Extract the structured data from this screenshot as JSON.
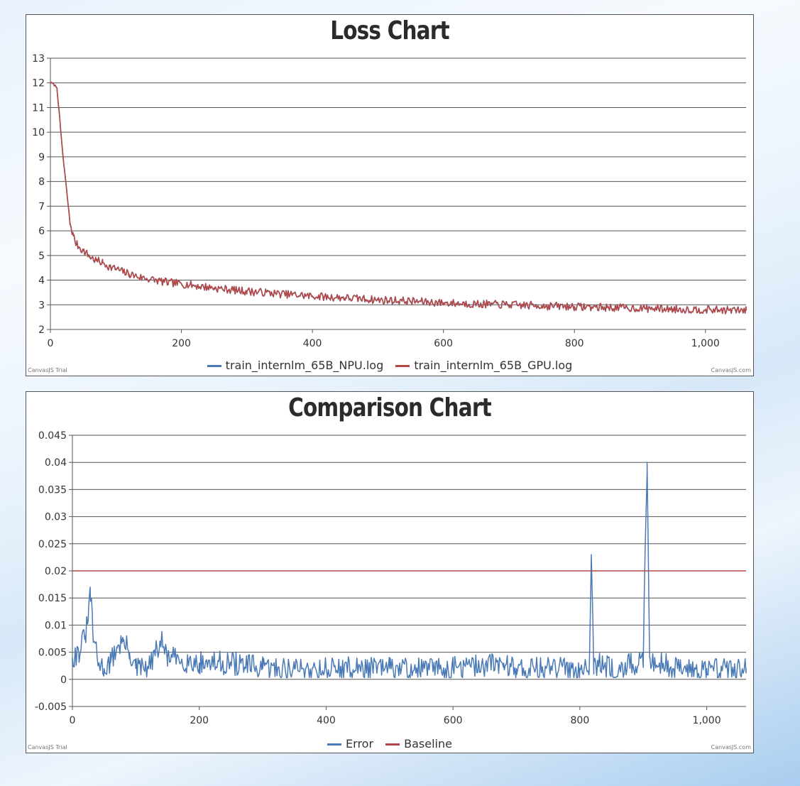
{
  "colors": {
    "series_blue": "#4a7ab6",
    "series_red": "#b44646",
    "grid": "#555555"
  },
  "watermark_left": "CanvasJS Trial",
  "watermark_right": "CanvasJS.com",
  "chart_data": [
    {
      "type": "line",
      "title": "Loss Chart",
      "xlabel": "",
      "ylabel": "",
      "xlim": [
        0,
        1062
      ],
      "ylim": [
        2,
        13
      ],
      "x_ticks": [
        0,
        200,
        400,
        600,
        800,
        1000
      ],
      "x_tick_labels": [
        "0",
        "200",
        "400",
        "600",
        "800",
        "1,000"
      ],
      "y_ticks": [
        2,
        3,
        4,
        5,
        6,
        7,
        8,
        9,
        10,
        11,
        12,
        13
      ],
      "y_tick_labels": [
        "2",
        "3",
        "4",
        "5",
        "6",
        "7",
        "8",
        "9",
        "10",
        "11",
        "12",
        "13"
      ],
      "grid": "horizontal",
      "legend_position": "bottom-center",
      "legend": [
        "train_internlm_65B_NPU.log",
        "train_internlm_65B_GPU.log"
      ],
      "series": [
        {
          "name": "train_internlm_65B_NPU.log",
          "color": "#4a7ab6",
          "x": [
            0,
            5,
            10,
            15,
            20,
            25,
            30,
            35,
            40,
            50,
            60,
            70,
            80,
            90,
            100,
            120,
            140,
            160,
            180,
            200,
            250,
            300,
            350,
            400,
            450,
            500,
            550,
            600,
            650,
            700,
            750,
            800,
            850,
            900,
            950,
            1000,
            1062
          ],
          "y": [
            12.0,
            11.95,
            11.8,
            10.3,
            8.8,
            7.6,
            6.3,
            5.8,
            5.45,
            5.2,
            4.95,
            4.8,
            4.7,
            4.55,
            4.45,
            4.25,
            4.1,
            4.0,
            3.9,
            3.85,
            3.68,
            3.55,
            3.45,
            3.35,
            3.28,
            3.2,
            3.15,
            3.08,
            3.03,
            3.0,
            2.96,
            2.93,
            2.89,
            2.86,
            2.83,
            2.8,
            2.77
          ],
          "noise": 0.16
        },
        {
          "name": "train_internlm_65B_GPU.log",
          "color": "#b44646",
          "x": [
            0,
            5,
            10,
            15,
            20,
            25,
            30,
            35,
            40,
            50,
            60,
            70,
            80,
            90,
            100,
            120,
            140,
            160,
            180,
            200,
            250,
            300,
            350,
            400,
            450,
            500,
            550,
            600,
            650,
            700,
            750,
            800,
            850,
            900,
            950,
            1000,
            1062
          ],
          "y": [
            12.0,
            11.95,
            11.8,
            10.3,
            8.8,
            7.6,
            6.3,
            5.8,
            5.45,
            5.2,
            4.95,
            4.8,
            4.7,
            4.55,
            4.45,
            4.25,
            4.1,
            4.0,
            3.9,
            3.85,
            3.68,
            3.55,
            3.45,
            3.35,
            3.28,
            3.2,
            3.15,
            3.08,
            3.03,
            3.0,
            2.96,
            2.93,
            2.89,
            2.86,
            2.83,
            2.8,
            2.77
          ],
          "noise": 0.16
        }
      ]
    },
    {
      "type": "line",
      "title": "Comparison Chart",
      "xlabel": "",
      "ylabel": "",
      "xlim": [
        0,
        1062
      ],
      "ylim": [
        -0.005,
        0.045
      ],
      "x_ticks": [
        0,
        200,
        400,
        600,
        800,
        1000
      ],
      "x_tick_labels": [
        "0",
        "200",
        "400",
        "600",
        "800",
        "1,000"
      ],
      "y_ticks": [
        -0.005,
        0,
        0.005,
        0.01,
        0.015,
        0.02,
        0.025,
        0.03,
        0.035,
        0.04,
        0.045
      ],
      "y_tick_labels": [
        "-0.005",
        "0",
        "0.005",
        "0.01",
        "0.015",
        "0.02",
        "0.025",
        "0.03",
        "0.035",
        "0.04",
        "0.045"
      ],
      "grid": "horizontal",
      "legend_position": "bottom-center",
      "legend": [
        "Error",
        "Baseline"
      ],
      "series": [
        {
          "name": "Error",
          "color": "#4a7ab6",
          "x": [
            0,
            10,
            20,
            25,
            28,
            32,
            40,
            50,
            60,
            70,
            80,
            90,
            100,
            120,
            140,
            150,
            200,
            250,
            300,
            350,
            400,
            500,
            600,
            680,
            700,
            800,
            815,
            818,
            822,
            850,
            900,
            903,
            906,
            910,
            950,
            1000,
            1062
          ],
          "y": [
            0.004,
            0.005,
            0.008,
            0.011,
            0.017,
            0.009,
            0.003,
            0.002,
            0.003,
            0.006,
            0.007,
            0.005,
            0.002,
            0.002,
            0.007,
            0.004,
            0.003,
            0.003,
            0.002,
            0.002,
            0.002,
            0.002,
            0.002,
            0.003,
            0.002,
            0.002,
            0.003,
            0.023,
            0.003,
            0.002,
            0.003,
            0.024,
            0.04,
            0.004,
            0.002,
            0.002,
            0.002
          ],
          "noise": 0.0022
        },
        {
          "name": "Baseline",
          "color": "#b44646",
          "x": [
            0,
            1062
          ],
          "y": [
            0.02,
            0.02
          ],
          "noise": 0
        }
      ]
    }
  ]
}
